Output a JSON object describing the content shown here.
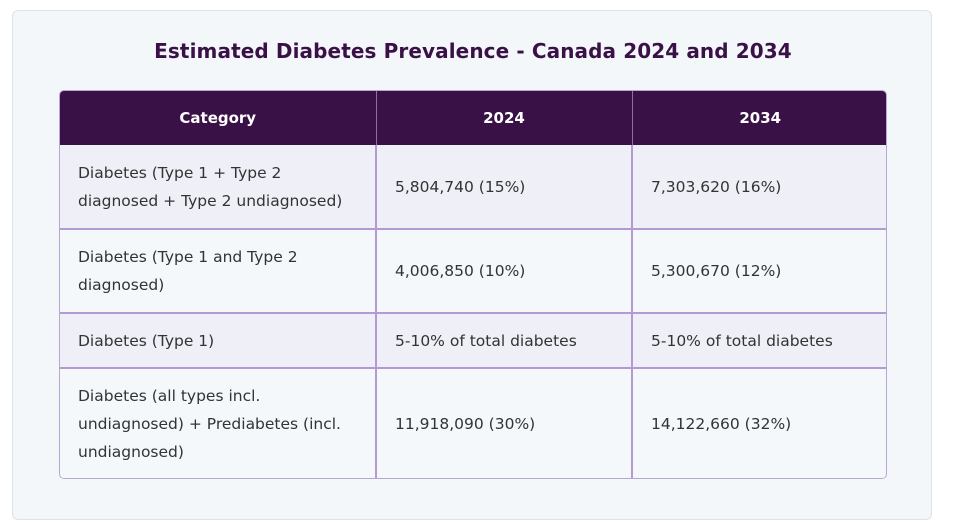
{
  "title": "Estimated Diabetes Prevalence - Canada 2024 and 2034",
  "table": {
    "headers": [
      "Category",
      "2024",
      "2034"
    ],
    "rows": [
      [
        "Diabetes (Type 1 + Type 2 diagnosed + Type 2 undiagnosed)",
        "5,804,740 (15%)",
        "7,303,620 (16%)"
      ],
      [
        "Diabetes (Type 1 and Type 2 diagnosed)",
        "4,006,850 (10%)",
        "5,300,670 (12%)"
      ],
      [
        "Diabetes (Type 1)",
        "5-10% of total diabetes",
        "5-10% of total diabetes"
      ],
      [
        "Diabetes (all types incl. undiagnosed) + Prediabetes (incl. undiagnosed)",
        "11,918,090 (30%)",
        "14,122,660 (32%)"
      ]
    ]
  },
  "colors": {
    "header_bg": "#3a1146",
    "title": "#3a1146",
    "border": "#b49ad2",
    "row_alt": "#efeff7",
    "row_base": "#f4f8fb"
  }
}
